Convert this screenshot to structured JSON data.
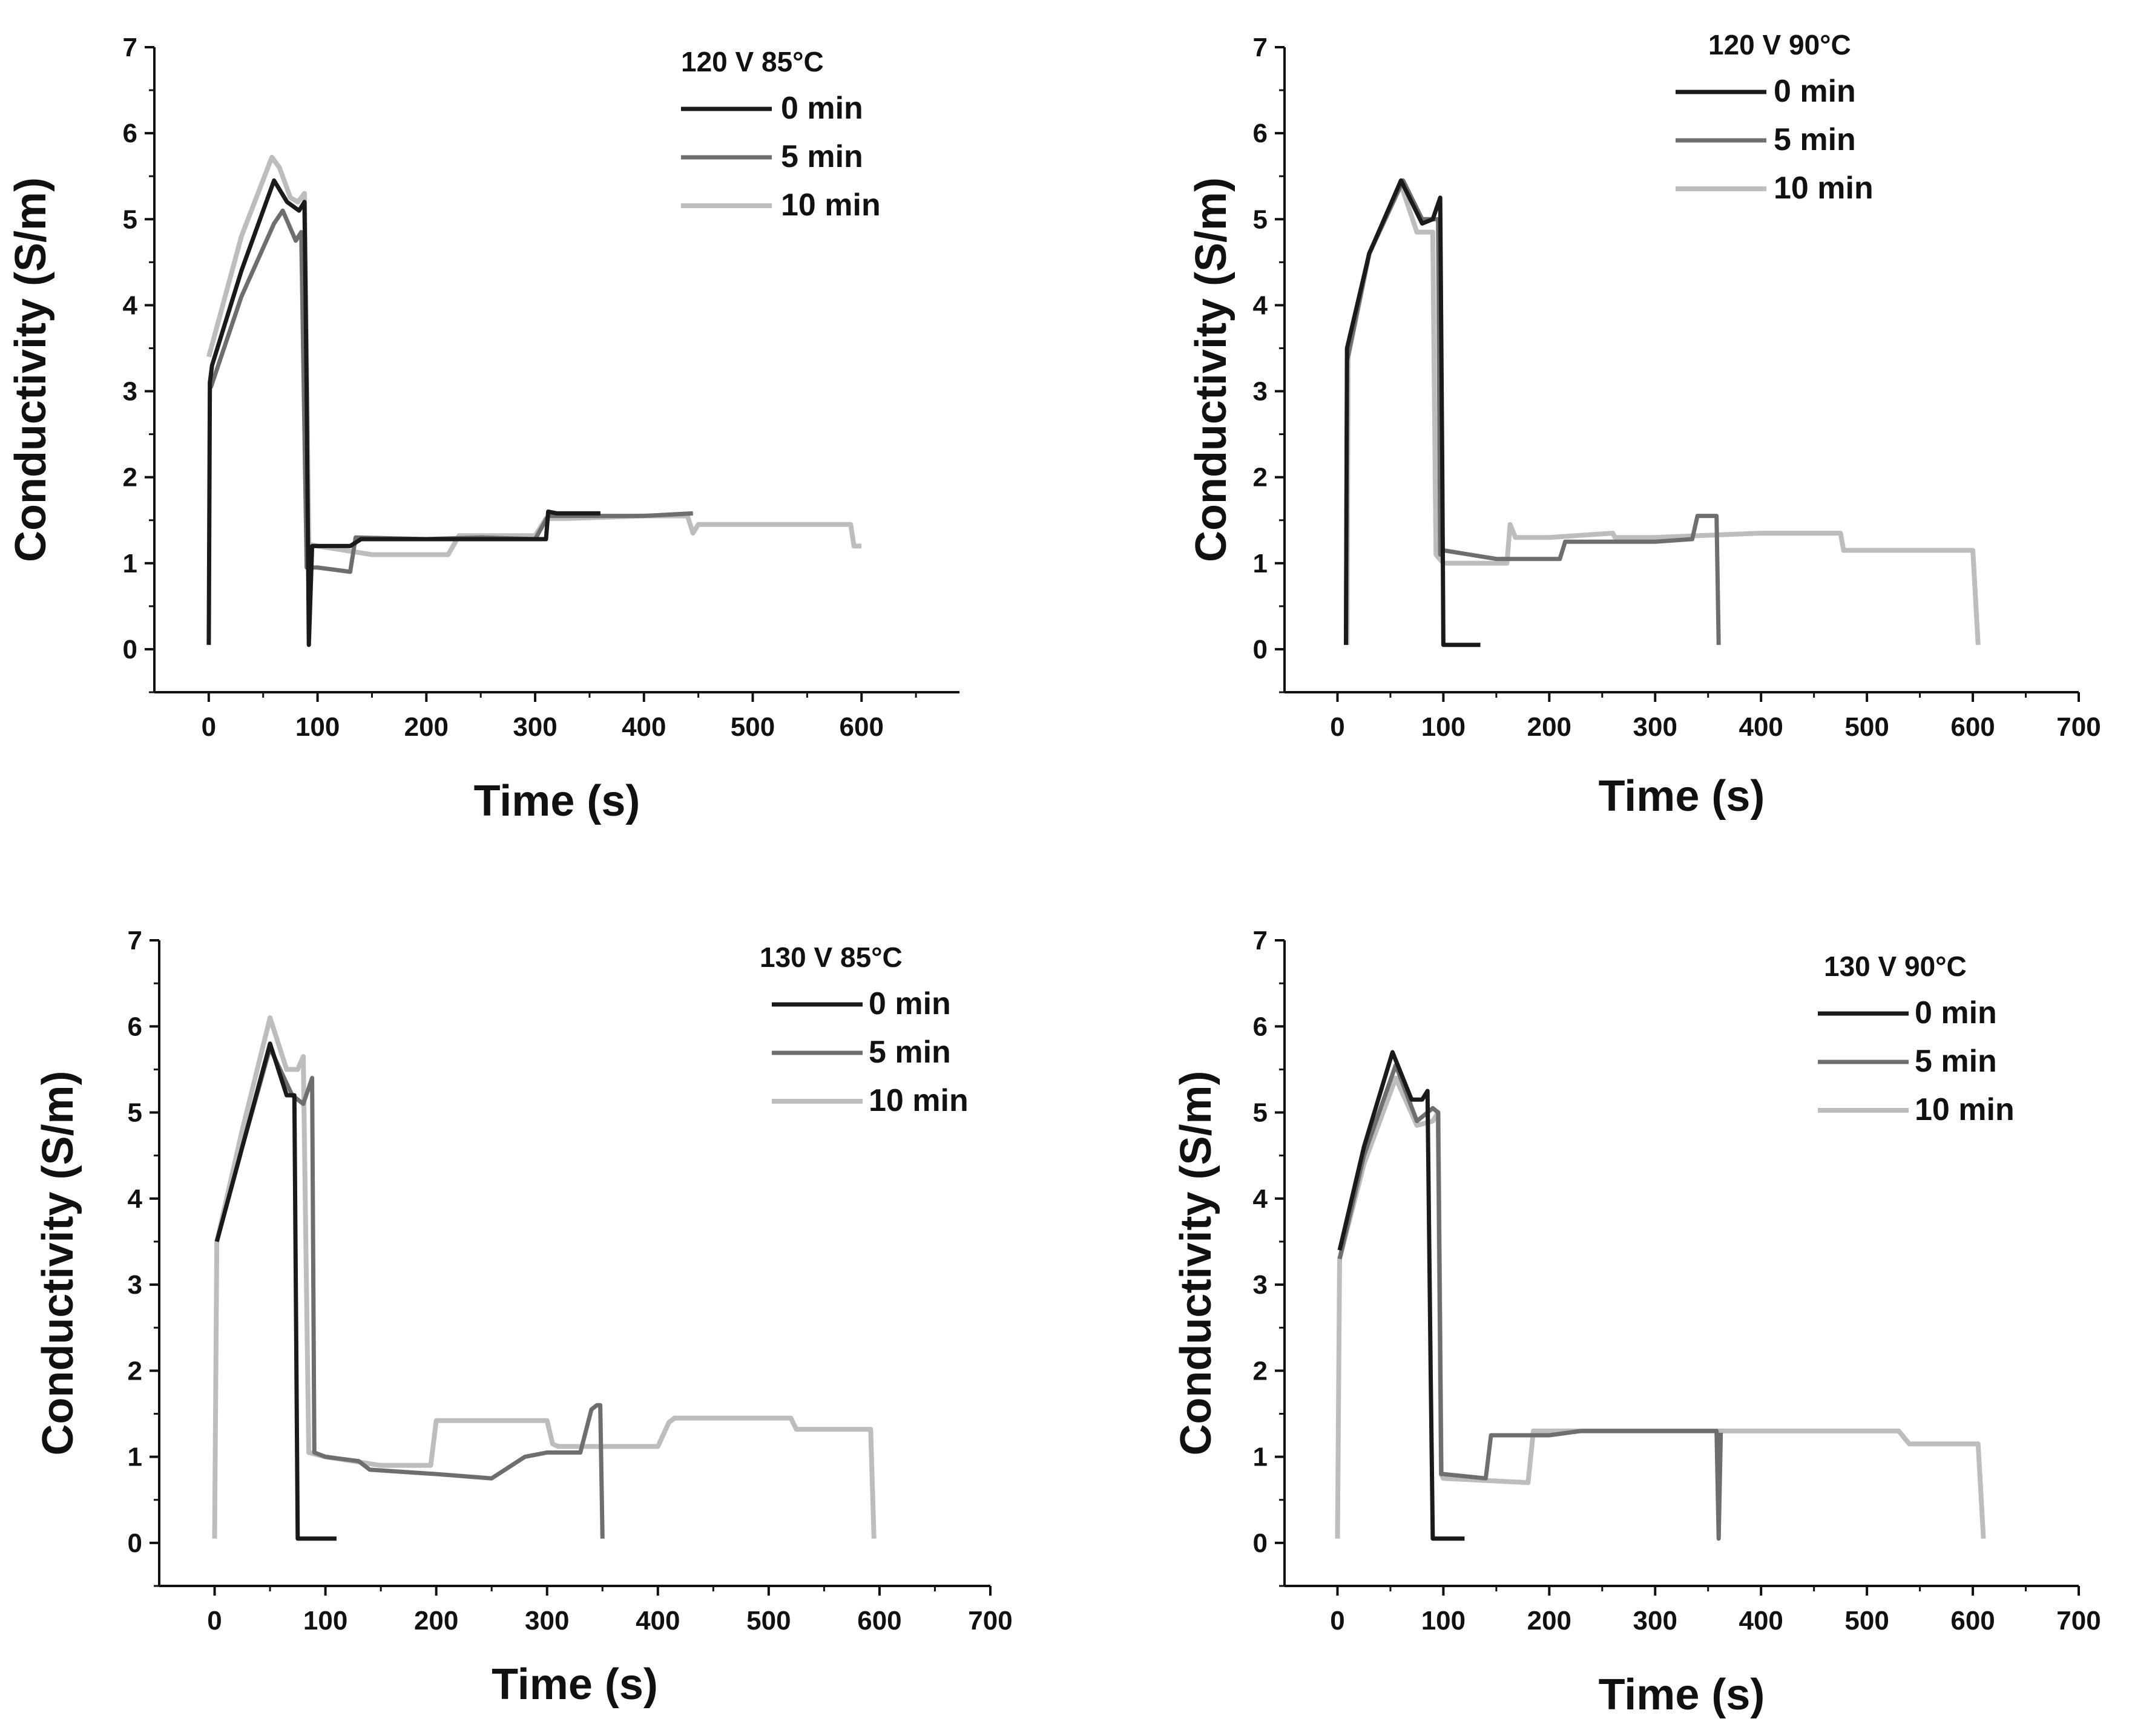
{
  "colors": {
    "series_0": "#1a1a1a",
    "series_5": "#6e6e6e",
    "series_10": "#bdbdbd",
    "axis": "#111111"
  },
  "chart_data": [
    {
      "type": "line",
      "title": "120 V 85°C",
      "xlabel": "Time (s)",
      "ylabel": "Conductivity (S/m)",
      "xlim": [
        -50,
        690
      ],
      "ylim": [
        -0.5,
        7
      ],
      "xticks": [
        0,
        100,
        200,
        300,
        400,
        500,
        600
      ],
      "yticks": [
        0,
        1,
        2,
        3,
        4,
        5,
        6,
        7
      ],
      "series": [
        {
          "name": "0 min",
          "x": [
            0,
            1,
            2,
            3,
            30,
            60,
            72,
            83,
            88,
            90,
            92,
            95,
            100,
            130,
            140,
            200,
            230,
            250,
            310,
            312,
            320,
            360
          ],
          "y": [
            0.05,
            3.1,
            3.2,
            3.3,
            4.4,
            5.45,
            5.2,
            5.1,
            5.2,
            3.0,
            0.05,
            1.2,
            1.2,
            1.2,
            1.28,
            1.28,
            1.28,
            1.28,
            1.28,
            1.6,
            1.58,
            1.58
          ]
        },
        {
          "name": "5 min",
          "x": [
            0,
            2,
            30,
            60,
            68,
            80,
            85,
            90,
            95,
            100,
            130,
            135,
            200,
            250,
            300,
            312,
            330,
            400,
            445
          ],
          "y": [
            3.05,
            3.05,
            4.1,
            4.95,
            5.1,
            4.75,
            4.85,
            0.95,
            0.95,
            0.95,
            0.9,
            1.3,
            1.28,
            1.3,
            1.28,
            1.55,
            1.55,
            1.55,
            1.58
          ]
        },
        {
          "name": "10 min",
          "x": [
            0,
            30,
            58,
            65,
            75,
            82,
            88,
            92,
            100,
            150,
            200,
            220,
            230,
            300,
            310,
            330,
            400,
            440,
            445,
            450,
            500,
            590,
            593,
            600
          ],
          "y": [
            3.4,
            4.8,
            5.72,
            5.6,
            5.25,
            5.2,
            5.3,
            1.22,
            1.2,
            1.1,
            1.1,
            1.1,
            1.32,
            1.32,
            1.52,
            1.52,
            1.55,
            1.55,
            1.35,
            1.45,
            1.45,
            1.45,
            1.2,
            1.2
          ]
        }
      ],
      "legend": [
        "0 min",
        "5 min",
        "10 min"
      ]
    },
    {
      "type": "line",
      "title": "120 V 90°C",
      "xlabel": "Time (s)",
      "ylabel": "Conductivity (S/m)",
      "xlim": [
        -50,
        700
      ],
      "ylim": [
        -0.5,
        7
      ],
      "xticks": [
        0,
        100,
        200,
        300,
        400,
        500,
        600,
        700
      ],
      "yticks": [
        0,
        1,
        2,
        3,
        4,
        5,
        6,
        7
      ],
      "series": [
        {
          "name": "0 min",
          "x": [
            8,
            9,
            30,
            60,
            80,
            90,
            97,
            99,
            100,
            135
          ],
          "y": [
            0.05,
            3.5,
            4.6,
            5.45,
            4.95,
            5.0,
            5.25,
            2.0,
            0.05,
            0.05
          ]
        },
        {
          "name": "5 min",
          "x": [
            8,
            9,
            30,
            62,
            80,
            95,
            97,
            100,
            150,
            210,
            215,
            300,
            335,
            340,
            355,
            358,
            360
          ],
          "y": [
            0.05,
            3.35,
            4.6,
            5.45,
            5.0,
            5.0,
            1.1,
            1.15,
            1.05,
            1.05,
            1.25,
            1.25,
            1.28,
            1.55,
            1.55,
            1.55,
            0.05
          ]
        },
        {
          "name": "10 min",
          "x": [
            9,
            10,
            30,
            60,
            75,
            90,
            93,
            100,
            160,
            163,
            168,
            200,
            260,
            262,
            300,
            400,
            475,
            478,
            600,
            605
          ],
          "y": [
            0.05,
            3.4,
            4.6,
            5.4,
            4.85,
            4.85,
            1.1,
            1.0,
            1.0,
            1.45,
            1.3,
            1.3,
            1.35,
            1.3,
            1.3,
            1.35,
            1.35,
            1.15,
            1.15,
            0.05
          ]
        }
      ],
      "legend": [
        "0 min",
        "5 min",
        "10 min"
      ]
    },
    {
      "type": "line",
      "title": "130 V 85°C",
      "xlabel": "Time (s)",
      "ylabel": "Conductivity (S/m)",
      "xlim": [
        -50,
        700
      ],
      "ylim": [
        -0.5,
        7
      ],
      "xticks": [
        0,
        100,
        200,
        300,
        400,
        500,
        600,
        700
      ],
      "yticks": [
        0,
        1,
        2,
        3,
        4,
        5,
        6,
        7
      ],
      "series": [
        {
          "name": "0 min",
          "x": [
            2,
            25,
            50,
            65,
            72,
            75,
            77,
            110
          ],
          "y": [
            3.5,
            4.6,
            5.8,
            5.2,
            5.2,
            0.05,
            0.05,
            0.05
          ]
        },
        {
          "name": "5 min",
          "x": [
            2,
            25,
            50,
            70,
            80,
            88,
            90,
            100,
            130,
            140,
            200,
            250,
            280,
            300,
            330,
            340,
            345,
            348,
            350
          ],
          "y": [
            3.5,
            4.6,
            5.75,
            5.2,
            5.1,
            5.4,
            1.05,
            1.0,
            0.95,
            0.85,
            0.8,
            0.75,
            1.0,
            1.05,
            1.05,
            1.55,
            1.6,
            1.6,
            0.05
          ]
        },
        {
          "name": "10 min",
          "x": [
            0,
            2,
            25,
            50,
            65,
            75,
            80,
            85,
            100,
            150,
            195,
            200,
            300,
            305,
            310,
            400,
            410,
            415,
            500,
            520,
            525,
            590,
            592,
            595
          ],
          "y": [
            0.05,
            3.5,
            4.8,
            6.1,
            5.5,
            5.5,
            5.65,
            1.05,
            1.0,
            0.9,
            0.9,
            1.42,
            1.42,
            1.15,
            1.12,
            1.12,
            1.4,
            1.45,
            1.45,
            1.45,
            1.32,
            1.32,
            1.32,
            0.05
          ]
        }
      ],
      "legend": [
        "0 min",
        "5 min",
        "10 min"
      ]
    },
    {
      "type": "line",
      "title": "130 V 90°C",
      "xlabel": "Time (s)",
      "ylabel": "Conductivity (S/m)",
      "xlim": [
        -50,
        700
      ],
      "ylim": [
        -0.5,
        7
      ],
      "xticks": [
        0,
        100,
        200,
        300,
        400,
        500,
        600,
        700
      ],
      "yticks": [
        0,
        1,
        2,
        3,
        4,
        5,
        6,
        7
      ],
      "series": [
        {
          "name": "0 min",
          "x": [
            2,
            25,
            52,
            70,
            80,
            85,
            88,
            90,
            120
          ],
          "y": [
            3.4,
            4.6,
            5.7,
            5.15,
            5.15,
            5.25,
            2.0,
            0.05,
            0.05
          ]
        },
        {
          "name": "5 min",
          "x": [
            2,
            25,
            55,
            75,
            90,
            95,
            98,
            100,
            140,
            145,
            200,
            230,
            300,
            358,
            360,
            362
          ],
          "y": [
            3.3,
            4.5,
            5.55,
            4.9,
            5.05,
            5.0,
            0.8,
            0.8,
            0.75,
            1.25,
            1.25,
            1.3,
            1.3,
            1.3,
            0.05,
            1.28
          ]
        },
        {
          "name": "10 min",
          "x": [
            0,
            2,
            25,
            55,
            75,
            90,
            95,
            98,
            100,
            180,
            185,
            300,
            400,
            530,
            540,
            605,
            610
          ],
          "y": [
            0.05,
            3.3,
            4.4,
            5.4,
            4.85,
            4.9,
            5.0,
            0.8,
            0.75,
            0.7,
            1.3,
            1.3,
            1.3,
            1.3,
            1.15,
            1.15,
            0.05
          ]
        }
      ],
      "legend": [
        "0 min",
        "5 min",
        "10 min"
      ]
    }
  ]
}
